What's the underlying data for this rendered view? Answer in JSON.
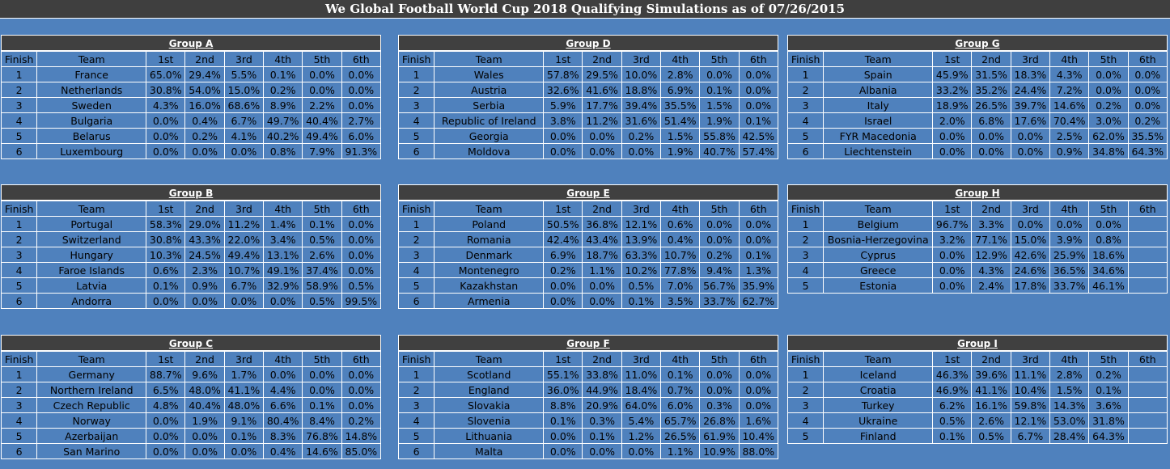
{
  "title": "We Global Football World Cup 2018 Qualifying Simulations as of 07/26/2015",
  "columns": [
    "Finish",
    "Team",
    "1st",
    "2nd",
    "3rd",
    "4th",
    "5th",
    "6th"
  ],
  "groups": [
    {
      "name": "Group A",
      "rows": [
        [
          "1",
          "France",
          "65.0%",
          "29.4%",
          "5.5%",
          "0.1%",
          "0.0%",
          "0.0%"
        ],
        [
          "2",
          "Netherlands",
          "30.8%",
          "54.0%",
          "15.0%",
          "0.2%",
          "0.0%",
          "0.0%"
        ],
        [
          "3",
          "Sweden",
          "4.3%",
          "16.0%",
          "68.6%",
          "8.9%",
          "2.2%",
          "0.0%"
        ],
        [
          "4",
          "Bulgaria",
          "0.0%",
          "0.4%",
          "6.7%",
          "49.7%",
          "40.4%",
          "2.7%"
        ],
        [
          "5",
          "Belarus",
          "0.0%",
          "0.2%",
          "4.1%",
          "40.2%",
          "49.4%",
          "6.0%"
        ],
        [
          "6",
          "Luxembourg",
          "0.0%",
          "0.0%",
          "0.0%",
          "0.8%",
          "7.9%",
          "91.3%"
        ]
      ]
    },
    {
      "name": "Group B",
      "rows": [
        [
          "1",
          "Portugal",
          "58.3%",
          "29.0%",
          "11.2%",
          "1.4%",
          "0.1%",
          "0.0%"
        ],
        [
          "2",
          "Switzerland",
          "30.8%",
          "43.3%",
          "22.0%",
          "3.4%",
          "0.5%",
          "0.0%"
        ],
        [
          "3",
          "Hungary",
          "10.3%",
          "24.5%",
          "49.4%",
          "13.1%",
          "2.6%",
          "0.0%"
        ],
        [
          "4",
          "Faroe Islands",
          "0.6%",
          "2.3%",
          "10.7%",
          "49.1%",
          "37.4%",
          "0.0%"
        ],
        [
          "5",
          "Latvia",
          "0.1%",
          "0.9%",
          "6.7%",
          "32.9%",
          "58.9%",
          "0.5%"
        ],
        [
          "6",
          "Andorra",
          "0.0%",
          "0.0%",
          "0.0%",
          "0.0%",
          "0.5%",
          "99.5%"
        ]
      ]
    },
    {
      "name": "Group C",
      "rows": [
        [
          "1",
          "Germany",
          "88.7%",
          "9.6%",
          "1.7%",
          "0.0%",
          "0.0%",
          "0.0%"
        ],
        [
          "2",
          "Northern Ireland",
          "6.5%",
          "48.0%",
          "41.1%",
          "4.4%",
          "0.0%",
          "0.0%"
        ],
        [
          "3",
          "Czech Republic",
          "4.8%",
          "40.4%",
          "48.0%",
          "6.6%",
          "0.1%",
          "0.0%"
        ],
        [
          "4",
          "Norway",
          "0.0%",
          "1.9%",
          "9.1%",
          "80.4%",
          "8.4%",
          "0.2%"
        ],
        [
          "5",
          "Azerbaijan",
          "0.0%",
          "0.0%",
          "0.1%",
          "8.3%",
          "76.8%",
          "14.8%"
        ],
        [
          "6",
          "San Marino",
          "0.0%",
          "0.0%",
          "0.0%",
          "0.4%",
          "14.6%",
          "85.0%"
        ]
      ]
    },
    {
      "name": "Group D",
      "rows": [
        [
          "1",
          "Wales",
          "57.8%",
          "29.5%",
          "10.0%",
          "2.8%",
          "0.0%",
          "0.0%"
        ],
        [
          "2",
          "Austria",
          "32.6%",
          "41.6%",
          "18.8%",
          "6.9%",
          "0.1%",
          "0.0%"
        ],
        [
          "3",
          "Serbia",
          "5.9%",
          "17.7%",
          "39.4%",
          "35.5%",
          "1.5%",
          "0.0%"
        ],
        [
          "4",
          "Republic of Ireland",
          "3.8%",
          "11.2%",
          "31.6%",
          "51.4%",
          "1.9%",
          "0.1%"
        ],
        [
          "5",
          "Georgia",
          "0.0%",
          "0.0%",
          "0.2%",
          "1.5%",
          "55.8%",
          "42.5%"
        ],
        [
          "6",
          "Moldova",
          "0.0%",
          "0.0%",
          "0.0%",
          "1.9%",
          "40.7%",
          "57.4%"
        ]
      ]
    },
    {
      "name": "Group E",
      "rows": [
        [
          "1",
          "Poland",
          "50.5%",
          "36.8%",
          "12.1%",
          "0.6%",
          "0.0%",
          "0.0%"
        ],
        [
          "2",
          "Romania",
          "42.4%",
          "43.4%",
          "13.9%",
          "0.4%",
          "0.0%",
          "0.0%"
        ],
        [
          "3",
          "Denmark",
          "6.9%",
          "18.7%",
          "63.3%",
          "10.7%",
          "0.2%",
          "0.1%"
        ],
        [
          "4",
          "Montenegro",
          "0.2%",
          "1.1%",
          "10.2%",
          "77.8%",
          "9.4%",
          "1.3%"
        ],
        [
          "5",
          "Kazakhstan",
          "0.0%",
          "0.0%",
          "0.5%",
          "7.0%",
          "56.7%",
          "35.9%"
        ],
        [
          "6",
          "Armenia",
          "0.0%",
          "0.0%",
          "0.1%",
          "3.5%",
          "33.7%",
          "62.7%"
        ]
      ]
    },
    {
      "name": "Group F",
      "rows": [
        [
          "1",
          "Scotland",
          "55.1%",
          "33.8%",
          "11.0%",
          "0.1%",
          "0.0%",
          "0.0%"
        ],
        [
          "2",
          "England",
          "36.0%",
          "44.9%",
          "18.4%",
          "0.7%",
          "0.0%",
          "0.0%"
        ],
        [
          "3",
          "Slovakia",
          "8.8%",
          "20.9%",
          "64.0%",
          "6.0%",
          "0.3%",
          "0.0%"
        ],
        [
          "4",
          "Slovenia",
          "0.1%",
          "0.3%",
          "5.4%",
          "65.7%",
          "26.8%",
          "1.6%"
        ],
        [
          "5",
          "Lithuania",
          "0.0%",
          "0.1%",
          "1.2%",
          "26.5%",
          "61.9%",
          "10.4%"
        ],
        [
          "6",
          "Malta",
          "0.0%",
          "0.0%",
          "0.0%",
          "1.1%",
          "10.9%",
          "88.0%"
        ]
      ]
    },
    {
      "name": "Group G",
      "rows": [
        [
          "1",
          "Spain",
          "45.9%",
          "31.5%",
          "18.3%",
          "4.3%",
          "0.0%",
          "0.0%"
        ],
        [
          "2",
          "Albania",
          "33.2%",
          "35.2%",
          "24.4%",
          "7.2%",
          "0.0%",
          "0.0%"
        ],
        [
          "3",
          "Italy",
          "18.9%",
          "26.5%",
          "39.7%",
          "14.6%",
          "0.2%",
          "0.0%"
        ],
        [
          "4",
          "Israel",
          "2.0%",
          "6.8%",
          "17.6%",
          "70.4%",
          "3.0%",
          "0.2%"
        ],
        [
          "5",
          "FYR Macedonia",
          "0.0%",
          "0.0%",
          "0.0%",
          "2.5%",
          "62.0%",
          "35.5%"
        ],
        [
          "6",
          "Liechtenstein",
          "0.0%",
          "0.0%",
          "0.0%",
          "0.9%",
          "34.8%",
          "64.3%"
        ]
      ]
    },
    {
      "name": "Group H",
      "rows": [
        [
          "1",
          "Belgium",
          "96.7%",
          "3.3%",
          "0.0%",
          "0.0%",
          "0.0%",
          ""
        ],
        [
          "2",
          "Bosnia-Herzegovina",
          "3.2%",
          "77.1%",
          "15.0%",
          "3.9%",
          "0.8%",
          ""
        ],
        [
          "3",
          "Cyprus",
          "0.0%",
          "12.9%",
          "42.6%",
          "25.9%",
          "18.6%",
          ""
        ],
        [
          "4",
          "Greece",
          "0.0%",
          "4.3%",
          "24.6%",
          "36.5%",
          "34.6%",
          ""
        ],
        [
          "5",
          "Estonia",
          "0.0%",
          "2.4%",
          "17.8%",
          "33.7%",
          "46.1%",
          ""
        ]
      ]
    },
    {
      "name": "Group I",
      "rows": [
        [
          "1",
          "Iceland",
          "46.3%",
          "39.6%",
          "11.1%",
          "2.8%",
          "0.2%",
          ""
        ],
        [
          "2",
          "Croatia",
          "46.9%",
          "41.1%",
          "10.4%",
          "1.5%",
          "0.1%",
          ""
        ],
        [
          "3",
          "Turkey",
          "6.2%",
          "16.1%",
          "59.8%",
          "14.3%",
          "3.6%",
          ""
        ],
        [
          "4",
          "Ukraine",
          "0.5%",
          "2.6%",
          "12.1%",
          "53.0%",
          "31.8%",
          ""
        ],
        [
          "5",
          "Finland",
          "0.1%",
          "0.5%",
          "6.7%",
          "28.4%",
          "64.3%",
          ""
        ]
      ]
    }
  ]
}
